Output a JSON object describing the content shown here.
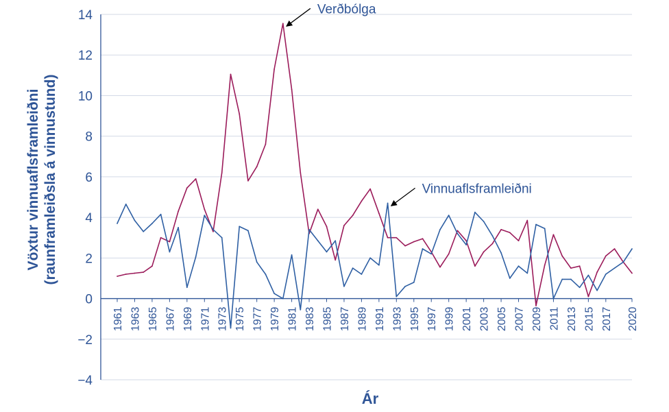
{
  "chart_data": {
    "type": "line",
    "xlabel": "Ár",
    "ylabel_line1": "Vöxtur vinnuaflsframleiðni",
    "ylabel_line2": "(raunframleiðsla á vinnustund)",
    "ylim": [
      -4,
      14
    ],
    "yticks": [
      -4,
      -2,
      0,
      2,
      4,
      6,
      8,
      10,
      12,
      14
    ],
    "x": [
      1961,
      1962,
      1963,
      1964,
      1965,
      1966,
      1967,
      1968,
      1969,
      1970,
      1971,
      1972,
      1973,
      1974,
      1975,
      1976,
      1977,
      1978,
      1979,
      1980,
      1981,
      1982,
      1983,
      1984,
      1985,
      1986,
      1987,
      1988,
      1989,
      1990,
      1991,
      1992,
      1993,
      1994,
      1995,
      1996,
      1997,
      1998,
      1999,
      2000,
      2001,
      2002,
      2003,
      2004,
      2005,
      2006,
      2007,
      2008,
      2009,
      2010,
      2011,
      2012,
      2013,
      2014,
      2015,
      2016,
      2017,
      2018,
      2019,
      2020
    ],
    "xticks": [
      1961,
      1963,
      1965,
      1967,
      1969,
      1971,
      1973,
      1975,
      1977,
      1979,
      1981,
      1983,
      1985,
      1987,
      1989,
      1991,
      1993,
      1995,
      1997,
      1999,
      2001,
      2003,
      2005,
      2007,
      2009,
      2011,
      2013,
      2015,
      2017,
      2020
    ],
    "grid": "horizontal",
    "series": [
      {
        "name": "Verðbólga",
        "color": "#9b1b5a",
        "values": [
          1.1,
          1.2,
          1.25,
          1.3,
          1.6,
          3.0,
          2.8,
          4.3,
          5.45,
          5.9,
          4.4,
          3.3,
          6.2,
          11.05,
          9.1,
          5.8,
          6.5,
          7.6,
          11.3,
          13.55,
          10.3,
          6.2,
          3.2,
          4.4,
          3.55,
          1.9,
          3.6,
          4.1,
          4.8,
          5.4,
          4.2,
          3.0,
          3.0,
          2.6,
          2.8,
          2.95,
          2.3,
          1.55,
          2.2,
          3.35,
          2.85,
          1.6,
          2.3,
          2.7,
          3.4,
          3.25,
          2.85,
          3.85,
          -0.35,
          1.65,
          3.15,
          2.1,
          1.5,
          1.6,
          0.1,
          1.3,
          2.1,
          2.45,
          1.8,
          1.25
        ]
      },
      {
        "name": "Vinnuaflsframleiðni",
        "color": "#2e5fa3",
        "values": [
          3.7,
          4.65,
          3.85,
          3.3,
          3.7,
          4.15,
          2.3,
          3.5,
          0.55,
          2.05,
          4.1,
          3.4,
          3.0,
          -1.45,
          3.55,
          3.35,
          1.8,
          1.2,
          0.25,
          0.0,
          2.15,
          -0.55,
          3.4,
          2.85,
          2.3,
          2.85,
          0.6,
          1.5,
          1.2,
          2.0,
          1.65,
          4.7,
          0.1,
          0.6,
          0.8,
          2.45,
          2.2,
          3.4,
          4.1,
          3.2,
          2.65,
          4.25,
          3.8,
          3.1,
          2.25,
          1.0,
          1.6,
          1.25,
          3.65,
          3.45,
          0.0,
          0.95,
          0.95,
          0.55,
          1.15,
          0.4,
          1.2,
          1.5,
          1.8,
          2.45
        ]
      }
    ],
    "annotations": [
      {
        "label": "Verðbólga",
        "series": 0,
        "year": 1980
      },
      {
        "label": "Vinnuaflsframleiðni",
        "series": 1,
        "year": 1992
      }
    ]
  }
}
